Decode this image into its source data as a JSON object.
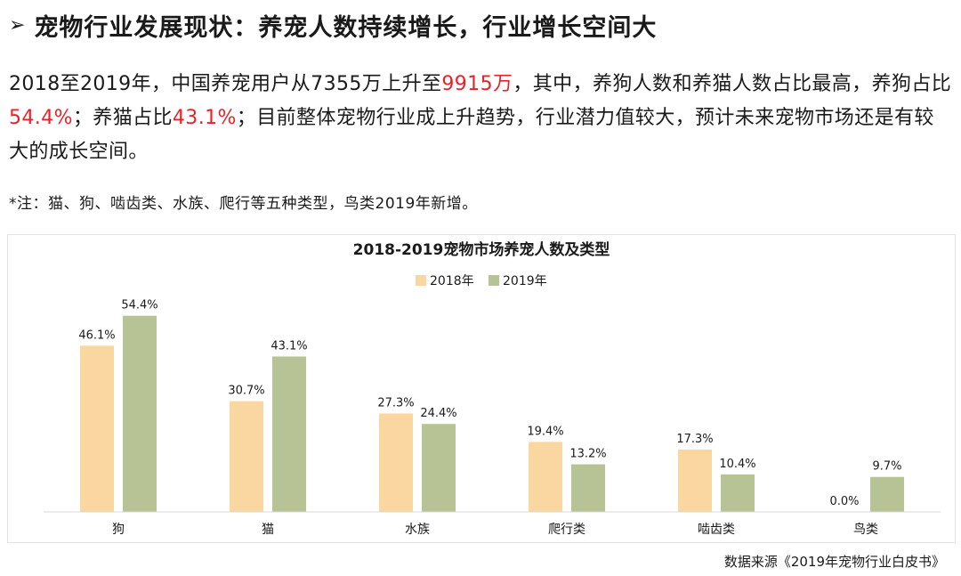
{
  "header": {
    "bullet": "➢",
    "title": "宠物行业发展现状：养宠人数持续增长，行业增长空间大"
  },
  "paragraph": {
    "seg1": "2018至2019年，中国养宠用户从7355万上升至",
    "seg2": "9915万",
    "seg3": "，其中，养狗人数和养猫人数占比最高，养狗占比",
    "seg4": "54.4%",
    "seg5": "；养猫占比",
    "seg6": "43.1%",
    "seg7": "；目前整体宠物行业成上升趋势，行业潜力值较大，预计未来宠物市场还是有较大的成长空间。"
  },
  "note": "*注：猫、狗、啮齿类、水族、爬行等五种类型，鸟类2019年新增。",
  "source": "数据来源《2019年宠物行业白皮书》",
  "colors": {
    "accent_red": "#e8222a",
    "series_2018": "#fad7a0",
    "series_2019": "#b7c394"
  },
  "chart_data": {
    "type": "bar",
    "title": "2018-2019宠物市场养宠人数及类型",
    "categories": [
      "狗",
      "猫",
      "水族",
      "爬行类",
      "啮齿类",
      "鸟类"
    ],
    "series": [
      {
        "name": "2018年",
        "values": [
          46.1,
          30.7,
          27.3,
          19.4,
          17.3,
          0.0
        ],
        "labels": [
          "46.1%",
          "30.7%",
          "27.3%",
          "19.4%",
          "17.3%",
          "0.0%"
        ]
      },
      {
        "name": "2019年",
        "values": [
          54.4,
          43.1,
          24.4,
          13.2,
          10.4,
          9.7
        ],
        "labels": [
          "54.4%",
          "43.1%",
          "24.4%",
          "13.2%",
          "10.4%",
          "9.7%"
        ]
      }
    ],
    "ylim": [
      0,
      60
    ],
    "unit": "%",
    "grid": false,
    "legend_position": "top-center",
    "xlabel": "",
    "ylabel": ""
  }
}
